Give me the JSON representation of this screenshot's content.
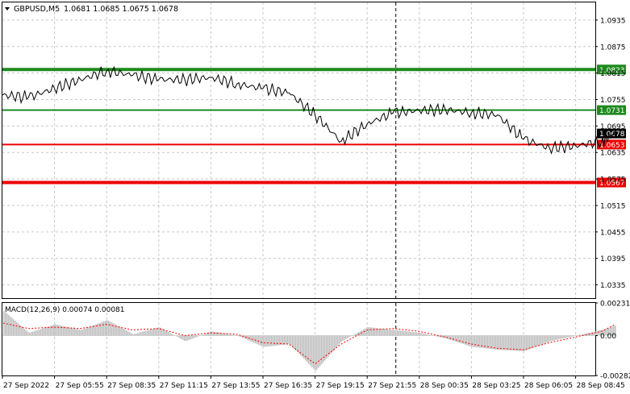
{
  "header": {
    "symbol": "GBPUSD,M5",
    "ohlc": "1.0681 1.0685 1.0675 1.0678"
  },
  "colors": {
    "frame": "#000000",
    "grid": "#c8c8c8",
    "price_line": "#000000",
    "resistance": "#1e8a1e",
    "support": "#ee0000",
    "current_tag": "#000000",
    "macd_hist": "#c0c0c0",
    "macd_signal": "#ff0000",
    "vertical_marker": "#000000"
  },
  "chart_data": [
    {
      "type": "line",
      "title": "GBPUSD,M5",
      "ylim": [
        1.0305,
        1.0975
      ],
      "y_ticks": [
        "1.0935",
        "1.0875",
        "1.0815",
        "1.0755",
        "1.0695",
        "1.0635",
        "1.0575",
        "1.0515",
        "1.0455",
        "1.0395",
        "1.0335"
      ],
      "x_ticks": [
        "27 Sep 2022",
        "27 Sep 05:55",
        "27 Sep 08:35",
        "27 Sep 11:15",
        "27 Sep 13:55",
        "27 Sep 16:35",
        "27 Sep 19:15",
        "27 Sep 21:55",
        "28 Sep 00:35",
        "28 Sep 03:25",
        "28 Sep 06:05",
        "28 Sep 08:45"
      ],
      "current_price": "1.0678",
      "levels": [
        {
          "label": "1.0823",
          "value": 1.0823,
          "kind": "resistance",
          "weight": "thick"
        },
        {
          "label": "1.0731",
          "value": 1.0731,
          "kind": "resistance",
          "weight": "thin"
        },
        {
          "label": "1.0653",
          "value": 1.0653,
          "kind": "support",
          "weight": "thin"
        },
        {
          "label": "1.0567",
          "value": 1.0567,
          "kind": "support",
          "weight": "thick"
        }
      ],
      "series": [
        {
          "x": [
            0,
            0.5,
            1,
            1.5,
            2,
            2.5,
            3,
            3.5,
            4,
            4.5,
            5,
            5.5,
            6,
            6.5,
            7,
            7.5,
            8,
            8.5,
            9,
            9.5,
            10,
            10.5,
            11,
            11.5,
            11.77
          ],
          "values": [
            1.0765,
            1.076,
            1.078,
            1.08,
            1.082,
            1.081,
            1.08,
            1.08,
            1.0805,
            1.079,
            1.078,
            1.077,
            1.072,
            1.066,
            1.07,
            1.0725,
            1.073,
            1.0732,
            1.0725,
            1.072,
            1.0665,
            1.0645,
            1.065,
            1.066,
            1.0678
          ]
        }
      ]
    },
    {
      "type": "area",
      "title": "MACD(12,26,9) 0.00074 0.00081",
      "ylim": [
        -0.00282,
        0.00231
      ],
      "y_ticks": [
        "0.00231",
        "0.00",
        "-0.00282"
      ],
      "series": [
        {
          "name": "MACD",
          "x": [
            0,
            0.5,
            1,
            1.5,
            2,
            2.5,
            3,
            3.5,
            4,
            4.5,
            5,
            5.5,
            6,
            6.5,
            7,
            7.5,
            8,
            8.5,
            9,
            9.5,
            10,
            10.5,
            11,
            11.5,
            11.77
          ],
          "values": [
            0.0018,
            0.0002,
            0.0008,
            0.0004,
            0.0011,
            0.0001,
            0.0006,
            -0.0004,
            0.0003,
            0.0,
            -0.0008,
            -0.0006,
            -0.0025,
            -0.0004,
            0.0006,
            0.0004,
            0.0002,
            -0.0002,
            -0.0008,
            -0.001,
            -0.0011,
            -0.0004,
            0.0,
            0.0004,
            0.00074
          ]
        },
        {
          "name": "Signal",
          "x": [
            0,
            0.5,
            1,
            1.5,
            2,
            2.5,
            3,
            3.5,
            4,
            4.5,
            5,
            5.5,
            6,
            6.5,
            7,
            7.5,
            8,
            8.5,
            9,
            9.5,
            10,
            10.5,
            11,
            11.5,
            11.77
          ],
          "values": [
            0.0009,
            0.0005,
            0.0006,
            0.0005,
            0.0008,
            0.0004,
            0.0005,
            0.0,
            0.0002,
            0.0001,
            -0.0005,
            -0.0006,
            -0.002,
            -0.0006,
            0.0004,
            0.0005,
            0.0003,
            -0.0001,
            -0.0006,
            -0.0009,
            -0.001,
            -0.0005,
            -0.0001,
            0.0003,
            0.00081
          ]
        }
      ]
    }
  ]
}
